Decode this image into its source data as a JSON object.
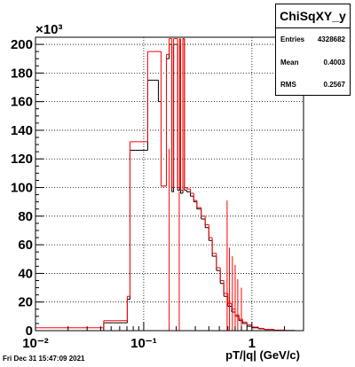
{
  "stats": {
    "title": "ChiSqXY_y",
    "rows": [
      {
        "label": "Entries",
        "value": "4328682"
      },
      {
        "label": "Mean",
        "value": "0.4003"
      },
      {
        "label": "RMS",
        "value": "0.2567"
      }
    ]
  },
  "footer": "Fri Dec 31 15:47:09 2021",
  "chart_data": {
    "type": "step",
    "title": "",
    "xlabel": "pT/|q| (GeV/c)",
    "ylabel": "",
    "y_multiplier": "×10³",
    "xscale": "log",
    "xlim": [
      0.01,
      3.0
    ],
    "ylim": [
      0,
      205
    ],
    "grid": true,
    "x_tick_labels": [
      {
        "value": 0.01,
        "text": "10⁻²"
      },
      {
        "value": 0.1,
        "text": "10⁻¹"
      },
      {
        "value": 1,
        "text": "1"
      }
    ],
    "y_ticks": [
      0,
      20,
      40,
      60,
      80,
      100,
      120,
      140,
      160,
      180,
      200
    ],
    "series": [
      {
        "color": "#000000",
        "edges": [
          0.01,
          0.0427,
          0.0637,
          0.0705,
          0.0747,
          0.1028,
          0.1089,
          0.1366,
          0.1448,
          0.1622,
          0.1718,
          0.1822,
          0.189,
          0.199,
          0.206,
          0.215,
          0.219,
          0.23,
          0.238,
          0.25,
          0.27,
          0.29,
          0.31,
          0.34,
          0.37,
          0.4,
          0.43,
          0.47,
          0.51,
          0.55,
          0.6,
          0.65,
          0.7,
          0.76,
          0.82,
          0.9,
          1.0,
          1.15,
          1.3,
          1.6,
          2.0,
          2.5
        ],
        "values": [
          0,
          5.5,
          5.5,
          22,
          126,
          126,
          175,
          160,
          101,
          190,
          200,
          97,
          200,
          200,
          98,
          200,
          96,
          204,
          98,
          97,
          94,
          90,
          85,
          78,
          72,
          63,
          52,
          42,
          33,
          24,
          17,
          13,
          10,
          7,
          5,
          3,
          2,
          1.3,
          0.8,
          0.3,
          0.1
        ]
      },
      {
        "color": "#ff0000",
        "edges": [
          0.01,
          0.0427,
          0.0637,
          0.0705,
          0.0747,
          0.1028,
          0.1089,
          0.1366,
          0.1448,
          0.1622,
          0.1718,
          0.1822,
          0.189,
          0.199,
          0.206,
          0.215,
          0.219,
          0.23,
          0.238,
          0.25,
          0.27,
          0.29,
          0.31,
          0.34,
          0.37,
          0.4,
          0.43,
          0.47,
          0.51,
          0.55,
          0.6,
          0.65,
          0.7,
          0.76,
          0.82,
          0.9,
          1.0,
          1.15,
          1.3,
          1.6,
          2.0,
          2.5
        ],
        "values": [
          2,
          7,
          7,
          24,
          132,
          132,
          195,
          195,
          101,
          193,
          204,
          100,
          204,
          204,
          100,
          204,
          98,
          204,
          100,
          99,
          96,
          91,
          86,
          80,
          74,
          65,
          54,
          44,
          35,
          26,
          19,
          15,
          11,
          8,
          6,
          4,
          2.5,
          1.6,
          0.9,
          0.4,
          0.1
        ]
      }
    ],
    "spikes": [
      {
        "x": 0.172,
        "y": 127
      },
      {
        "x": 0.213,
        "y": 97
      },
      {
        "x": 0.59,
        "y": 91
      },
      {
        "x": 0.62,
        "y": 58
      },
      {
        "x": 0.66,
        "y": 52
      },
      {
        "x": 0.7,
        "y": 46
      },
      {
        "x": 0.74,
        "y": 36
      },
      {
        "x": 0.8,
        "y": 30
      }
    ]
  }
}
